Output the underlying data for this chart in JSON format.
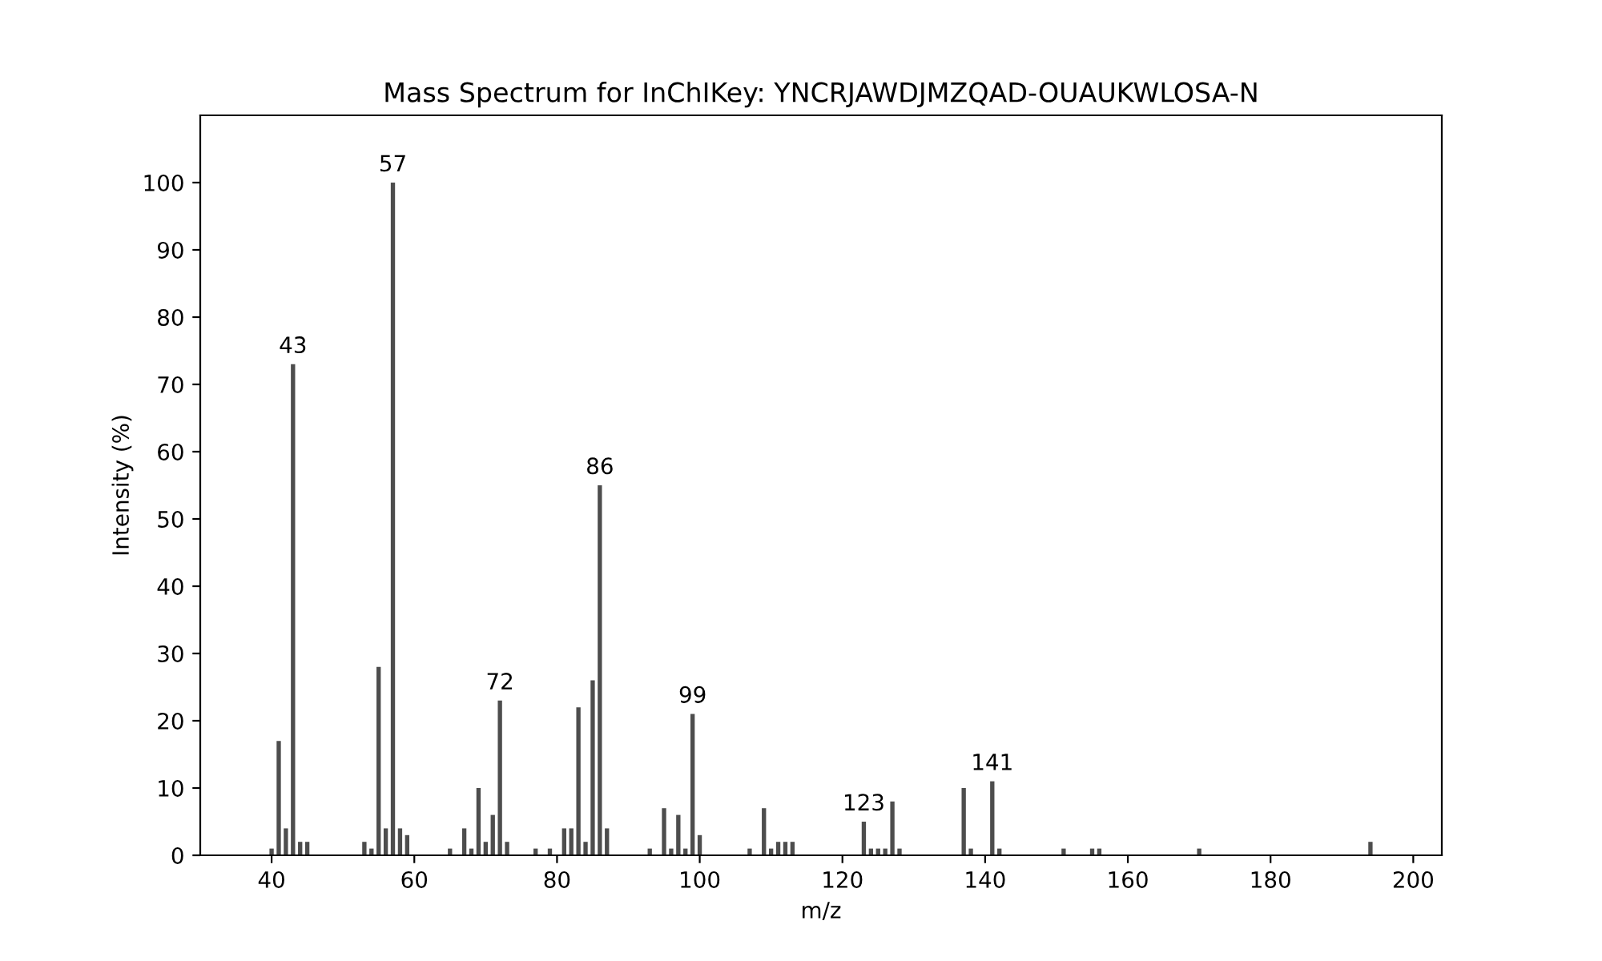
{
  "chart_data": {
    "type": "bar",
    "title": "Mass Spectrum for InChIKey: YNCRJAWDJMZQAD-OUAUKWLOSA-N",
    "xlabel": "m/z",
    "ylabel": "Intensity (%)",
    "x": [
      40,
      41,
      42,
      43,
      44,
      45,
      53,
      54,
      55,
      56,
      57,
      58,
      59,
      65,
      67,
      68,
      69,
      70,
      71,
      72,
      73,
      77,
      79,
      81,
      82,
      83,
      84,
      85,
      86,
      87,
      93,
      95,
      96,
      97,
      98,
      99,
      100,
      107,
      109,
      110,
      111,
      112,
      113,
      123,
      124,
      125,
      126,
      127,
      128,
      137,
      138,
      141,
      142,
      151,
      155,
      156,
      170,
      194
    ],
    "values": [
      1,
      17,
      4,
      73,
      2,
      2,
      2,
      1,
      28,
      4,
      100,
      4,
      3,
      1,
      4,
      1,
      10,
      2,
      6,
      23,
      2,
      1,
      1,
      4,
      4,
      22,
      2,
      26,
      55,
      4,
      1,
      7,
      1,
      6,
      1,
      21,
      3,
      1,
      7,
      1,
      2,
      2,
      2,
      5,
      1,
      1,
      1,
      8,
      1,
      10,
      1,
      11,
      1,
      1,
      1,
      1,
      1,
      2
    ],
    "annotations": [
      {
        "text": "43",
        "x": 43,
        "y": 73
      },
      {
        "text": "57",
        "x": 57,
        "y": 100
      },
      {
        "text": "72",
        "x": 72,
        "y": 23
      },
      {
        "text": "86",
        "x": 86,
        "y": 55
      },
      {
        "text": "99",
        "x": 99,
        "y": 21
      },
      {
        "text": "123",
        "x": 123,
        "y": 5
      },
      {
        "text": "141",
        "x": 141,
        "y": 11
      }
    ],
    "color": "#4d4d4d",
    "xlim": [
      30,
      204
    ],
    "ylim": [
      0,
      110
    ],
    "xticks": [
      40,
      60,
      80,
      100,
      120,
      140,
      160,
      180,
      200
    ],
    "yticks": [
      0,
      10,
      20,
      30,
      40,
      50,
      60,
      70,
      80,
      90,
      100
    ],
    "grid": false
  }
}
